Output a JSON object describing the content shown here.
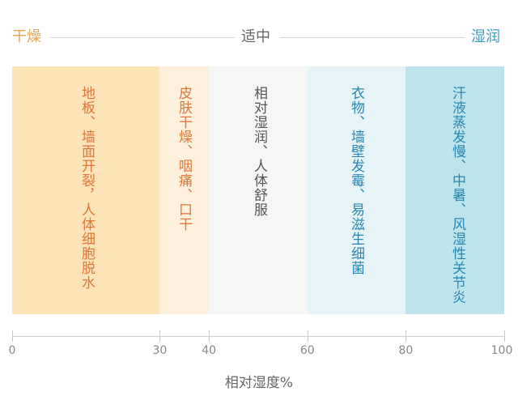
{
  "header": {
    "left": "干燥",
    "center": "适中",
    "right": "湿润"
  },
  "colors": {
    "dry": "#e9a657",
    "neutral": "#666666",
    "wet": "#3a9fbf",
    "dry_text": "#e0773a",
    "wet_text": "#2a86b0"
  },
  "bands": [
    {
      "range": [
        0,
        30
      ],
      "text": "地板、墙面开裂，人体细胞脱水",
      "color": "#fce3b8"
    },
    {
      "range": [
        30,
        40
      ],
      "text": "皮肤干燥、咽痛、口干",
      "color": "#fdf0dc"
    },
    {
      "range": [
        40,
        60
      ],
      "text": "相对湿润、人体舒服",
      "color": "#f6f6f6"
    },
    {
      "range": [
        60,
        80
      ],
      "text": "衣物、墙壁发霉、易滋生细菌",
      "color": "#e6f4f7"
    },
    {
      "range": [
        80,
        100
      ],
      "text": "汗液蒸发慢、中暑、风湿性关节炎",
      "color": "#bde3ec"
    }
  ],
  "axis": {
    "ticks": [
      "0",
      "30",
      "40",
      "60",
      "80",
      "100"
    ],
    "tick_values": [
      0,
      30,
      40,
      60,
      80,
      100
    ],
    "title": "相对湿度%",
    "range": [
      0,
      100
    ]
  }
}
